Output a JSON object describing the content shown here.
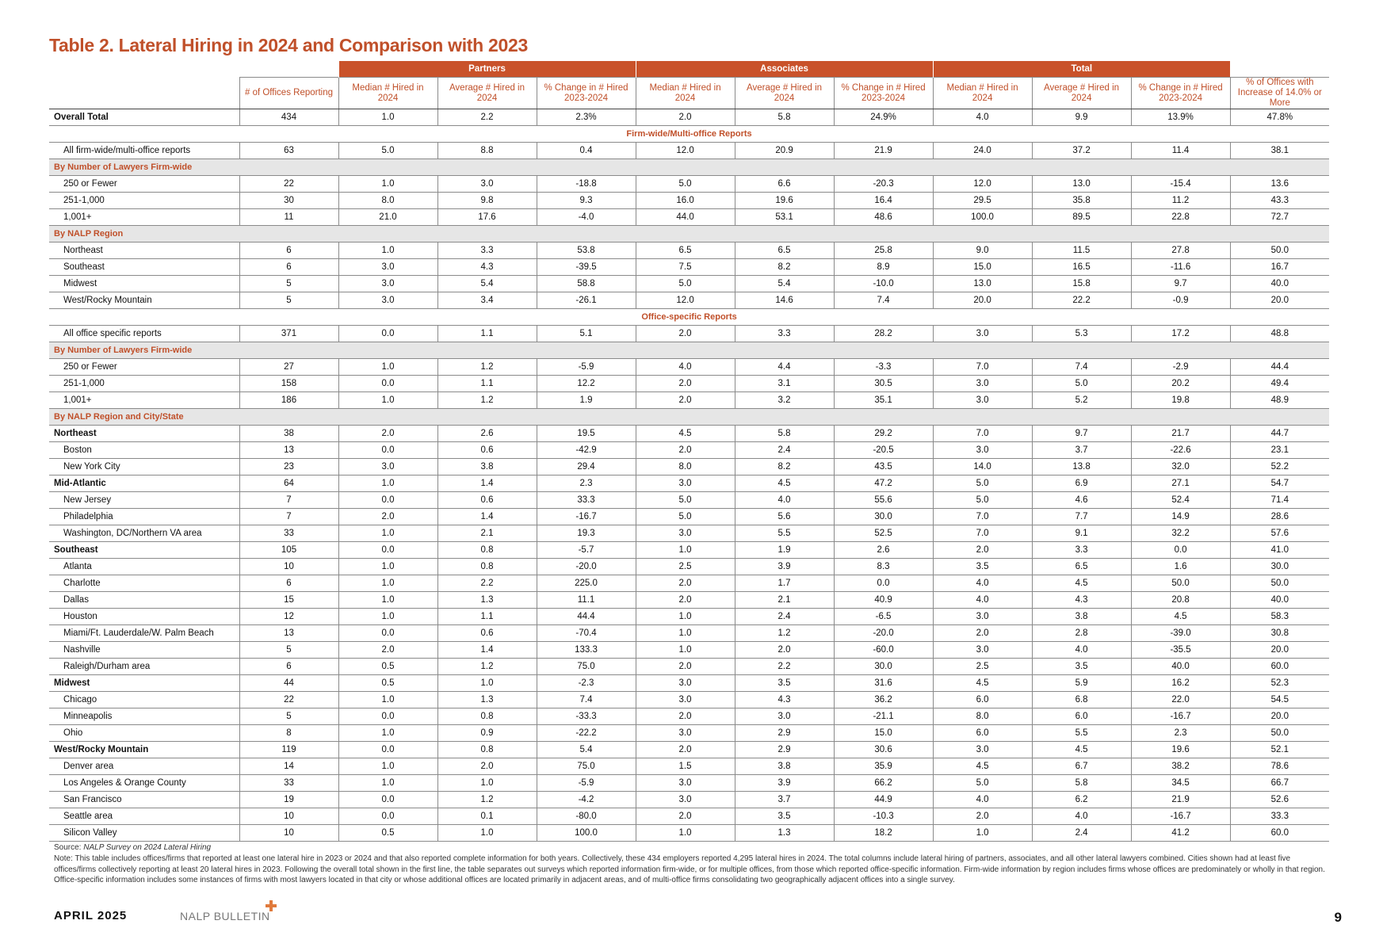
{
  "title": "Table 2. Lateral Hiring in 2024 and Comparison with 2023",
  "table": {
    "groups": [
      "Partners",
      "Associates",
      "Total"
    ],
    "columns": [
      "# of Offices Reporting",
      "Median # Hired in 2024",
      "Average # Hired in 2024",
      "% Change in # Hired 2023-2024",
      "Median # Hired in 2024",
      "Average # Hired in 2024",
      "% Change in # Hired 2023-2024",
      "Median # Hired in 2024",
      "Average # Hired in 2024",
      "% Change in # Hired 2023-2024",
      "% of Offices with Increase of 14.0% or More"
    ],
    "rows": [
      {
        "label": "Overall Total",
        "bold": true,
        "cells": [
          "434",
          "1.0",
          "2.2",
          "2.3%",
          "2.0",
          "5.8",
          "24.9%",
          "4.0",
          "9.9",
          "13.9%",
          "47.8%"
        ]
      },
      {
        "section": "Firm-wide/Multi-office Reports"
      },
      {
        "label": "All firm-wide/multi-office reports",
        "cells": [
          "63",
          "5.0",
          "8.8",
          "0.4",
          "12.0",
          "20.9",
          "21.9",
          "24.0",
          "37.2",
          "11.4",
          "38.1"
        ]
      },
      {
        "subhead": "By Number of Lawyers Firm-wide"
      },
      {
        "label": "250 or Fewer",
        "cells": [
          "22",
          "1.0",
          "3.0",
          "-18.8",
          "5.0",
          "6.6",
          "-20.3",
          "12.0",
          "13.0",
          "-15.4",
          "13.6"
        ]
      },
      {
        "label": "251-1,000",
        "cells": [
          "30",
          "8.0",
          "9.8",
          "9.3",
          "16.0",
          "19.6",
          "16.4",
          "29.5",
          "35.8",
          "11.2",
          "43.3"
        ]
      },
      {
        "label": "1,001+",
        "cells": [
          "11",
          "21.0",
          "17.6",
          "-4.0",
          "44.0",
          "53.1",
          "48.6",
          "100.0",
          "89.5",
          "22.8",
          "72.7"
        ]
      },
      {
        "subhead": "By NALP Region"
      },
      {
        "label": "Northeast",
        "cells": [
          "6",
          "1.0",
          "3.3",
          "53.8",
          "6.5",
          "6.5",
          "25.8",
          "9.0",
          "11.5",
          "27.8",
          "50.0"
        ]
      },
      {
        "label": "Southeast",
        "cells": [
          "6",
          "3.0",
          "4.3",
          "-39.5",
          "7.5",
          "8.2",
          "8.9",
          "15.0",
          "16.5",
          "-11.6",
          "16.7"
        ]
      },
      {
        "label": "Midwest",
        "cells": [
          "5",
          "3.0",
          "5.4",
          "58.8",
          "5.0",
          "5.4",
          "-10.0",
          "13.0",
          "15.8",
          "9.7",
          "40.0"
        ]
      },
      {
        "label": "West/Rocky Mountain",
        "cells": [
          "5",
          "3.0",
          "3.4",
          "-26.1",
          "12.0",
          "14.6",
          "7.4",
          "20.0",
          "22.2",
          "-0.9",
          "20.0"
        ]
      },
      {
        "section": "Office-specific Reports"
      },
      {
        "label": "All office specific reports",
        "cells": [
          "371",
          "0.0",
          "1.1",
          "5.1",
          "2.0",
          "3.3",
          "28.2",
          "3.0",
          "5.3",
          "17.2",
          "48.8"
        ]
      },
      {
        "subhead": "By Number of Lawyers Firm-wide"
      },
      {
        "label": "250 or Fewer",
        "cells": [
          "27",
          "1.0",
          "1.2",
          "-5.9",
          "4.0",
          "4.4",
          "-3.3",
          "7.0",
          "7.4",
          "-2.9",
          "44.4"
        ]
      },
      {
        "label": "251-1,000",
        "cells": [
          "158",
          "0.0",
          "1.1",
          "12.2",
          "2.0",
          "3.1",
          "30.5",
          "3.0",
          "5.0",
          "20.2",
          "49.4"
        ]
      },
      {
        "label": "1,001+",
        "cells": [
          "186",
          "1.0",
          "1.2",
          "1.9",
          "2.0",
          "3.2",
          "35.1",
          "3.0",
          "5.2",
          "19.8",
          "48.9"
        ]
      },
      {
        "subhead": "By NALP Region and City/State"
      },
      {
        "label": "Northeast",
        "bold": true,
        "cells": [
          "38",
          "2.0",
          "2.6",
          "19.5",
          "4.5",
          "5.8",
          "29.2",
          "7.0",
          "9.7",
          "21.7",
          "44.7"
        ]
      },
      {
        "label": "Boston",
        "cells": [
          "13",
          "0.0",
          "0.6",
          "-42.9",
          "2.0",
          "2.4",
          "-20.5",
          "3.0",
          "3.7",
          "-22.6",
          "23.1"
        ]
      },
      {
        "label": "New York City",
        "cells": [
          "23",
          "3.0",
          "3.8",
          "29.4",
          "8.0",
          "8.2",
          "43.5",
          "14.0",
          "13.8",
          "32.0",
          "52.2"
        ]
      },
      {
        "label": "Mid-Atlantic",
        "bold": true,
        "cells": [
          "64",
          "1.0",
          "1.4",
          "2.3",
          "3.0",
          "4.5",
          "47.2",
          "5.0",
          "6.9",
          "27.1",
          "54.7"
        ]
      },
      {
        "label": "New Jersey",
        "cells": [
          "7",
          "0.0",
          "0.6",
          "33.3",
          "5.0",
          "4.0",
          "55.6",
          "5.0",
          "4.6",
          "52.4",
          "71.4"
        ]
      },
      {
        "label": "Philadelphia",
        "cells": [
          "7",
          "2.0",
          "1.4",
          "-16.7",
          "5.0",
          "5.6",
          "30.0",
          "7.0",
          "7.7",
          "14.9",
          "28.6"
        ]
      },
      {
        "label": "Washington, DC/Northern VA area",
        "cells": [
          "33",
          "1.0",
          "2.1",
          "19.3",
          "3.0",
          "5.5",
          "52.5",
          "7.0",
          "9.1",
          "32.2",
          "57.6"
        ]
      },
      {
        "label": "Southeast",
        "bold": true,
        "cells": [
          "105",
          "0.0",
          "0.8",
          "-5.7",
          "1.0",
          "1.9",
          "2.6",
          "2.0",
          "3.3",
          "0.0",
          "41.0"
        ]
      },
      {
        "label": "Atlanta",
        "cells": [
          "10",
          "1.0",
          "0.8",
          "-20.0",
          "2.5",
          "3.9",
          "8.3",
          "3.5",
          "6.5",
          "1.6",
          "30.0"
        ]
      },
      {
        "label": "Charlotte",
        "cells": [
          "6",
          "1.0",
          "2.2",
          "225.0",
          "2.0",
          "1.7",
          "0.0",
          "4.0",
          "4.5",
          "50.0",
          "50.0"
        ]
      },
      {
        "label": "Dallas",
        "cells": [
          "15",
          "1.0",
          "1.3",
          "11.1",
          "2.0",
          "2.1",
          "40.9",
          "4.0",
          "4.3",
          "20.8",
          "40.0"
        ]
      },
      {
        "label": "Houston",
        "cells": [
          "12",
          "1.0",
          "1.1",
          "44.4",
          "1.0",
          "2.4",
          "-6.5",
          "3.0",
          "3.8",
          "4.5",
          "58.3"
        ]
      },
      {
        "label": "Miami/Ft. Lauderdale/W. Palm Beach",
        "cells": [
          "13",
          "0.0",
          "0.6",
          "-70.4",
          "1.0",
          "1.2",
          "-20.0",
          "2.0",
          "2.8",
          "-39.0",
          "30.8"
        ]
      },
      {
        "label": "Nashville",
        "cells": [
          "5",
          "2.0",
          "1.4",
          "133.3",
          "1.0",
          "2.0",
          "-60.0",
          "3.0",
          "4.0",
          "-35.5",
          "20.0"
        ]
      },
      {
        "label": "Raleigh/Durham area",
        "cells": [
          "6",
          "0.5",
          "1.2",
          "75.0",
          "2.0",
          "2.2",
          "30.0",
          "2.5",
          "3.5",
          "40.0",
          "60.0"
        ]
      },
      {
        "label": "Midwest",
        "bold": true,
        "cells": [
          "44",
          "0.5",
          "1.0",
          "-2.3",
          "3.0",
          "3.5",
          "31.6",
          "4.5",
          "5.9",
          "16.2",
          "52.3"
        ]
      },
      {
        "label": "Chicago",
        "cells": [
          "22",
          "1.0",
          "1.3",
          "7.4",
          "3.0",
          "4.3",
          "36.2",
          "6.0",
          "6.8",
          "22.0",
          "54.5"
        ]
      },
      {
        "label": "Minneapolis",
        "cells": [
          "5",
          "0.0",
          "0.8",
          "-33.3",
          "2.0",
          "3.0",
          "-21.1",
          "8.0",
          "6.0",
          "-16.7",
          "20.0"
        ]
      },
      {
        "label": "Ohio",
        "cells": [
          "8",
          "1.0",
          "0.9",
          "-22.2",
          "3.0",
          "2.9",
          "15.0",
          "6.0",
          "5.5",
          "2.3",
          "50.0"
        ]
      },
      {
        "label": "West/Rocky Mountain",
        "bold": true,
        "cells": [
          "119",
          "0.0",
          "0.8",
          "5.4",
          "2.0",
          "2.9",
          "30.6",
          "3.0",
          "4.5",
          "19.6",
          "52.1"
        ]
      },
      {
        "label": "Denver area",
        "cells": [
          "14",
          "1.0",
          "2.0",
          "75.0",
          "1.5",
          "3.8",
          "35.9",
          "4.5",
          "6.7",
          "38.2",
          "78.6"
        ]
      },
      {
        "label": "Los Angeles & Orange County",
        "cells": [
          "33",
          "1.0",
          "1.0",
          "-5.9",
          "3.0",
          "3.9",
          "66.2",
          "5.0",
          "5.8",
          "34.5",
          "66.7"
        ]
      },
      {
        "label": "San Francisco",
        "cells": [
          "19",
          "0.0",
          "1.2",
          "-4.2",
          "3.0",
          "3.7",
          "44.9",
          "4.0",
          "6.2",
          "21.9",
          "52.6"
        ]
      },
      {
        "label": "Seattle area",
        "cells": [
          "10",
          "0.0",
          "0.1",
          "-80.0",
          "2.0",
          "3.5",
          "-10.3",
          "2.0",
          "4.0",
          "-16.7",
          "33.3"
        ]
      },
      {
        "label": "Silicon Valley",
        "cells": [
          "10",
          "0.5",
          "1.0",
          "100.0",
          "1.0",
          "1.3",
          "18.2",
          "1.0",
          "2.4",
          "41.2",
          "60.0"
        ]
      }
    ]
  },
  "source": {
    "label": "Source:",
    "text": "NALP Survey on 2024 Lateral Hiring"
  },
  "note": "Note: This table includes offices/firms that reported at least one lateral hire in 2023 or 2024 and that also reported complete information for both years. Collectively, these 434 employers reported 4,295 lateral hires in 2024. The total columns include lateral hiring of partners, associates, and all other lateral lawyers combined. Cities shown had at least five offices/firms collectively reporting at least 20 lateral hires in 2023. Following the overall total shown in the first line, the table separates out surveys which reported information firm-wide, or for multiple offices, from those which reported office-specific information. Firm-wide information by region includes firms whose offices are predominately or wholly in that region. Office-specific information includes some instances of firms with most lawyers located in that city or whose additional offices are located primarily in adjacent areas, and of multi-office firms consolidating two geographically adjacent offices into a single survey.",
  "footer": {
    "date": "APRIL 2025",
    "publication": "NALP BULLETIN",
    "page": "9"
  }
}
